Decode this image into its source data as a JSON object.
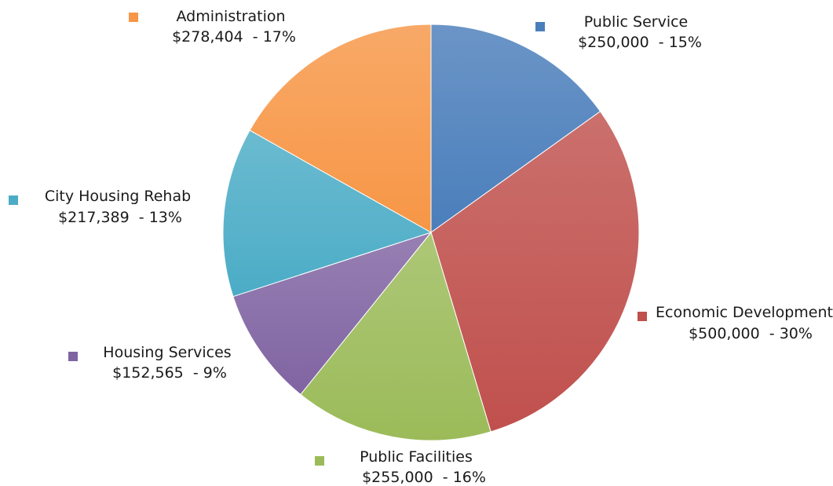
{
  "chart_data": {
    "type": "pie",
    "title": "",
    "slices": [
      {
        "label": "Public Service",
        "value": 250000,
        "value_text": "$250,000",
        "percent_text": "15%",
        "color": "#4a7ebb"
      },
      {
        "label": "Economic Development",
        "value": 500000,
        "value_text": "$500,000",
        "percent_text": "30%",
        "color": "#c0504d"
      },
      {
        "label": "Public Facilities",
        "value": 255000,
        "value_text": "$255,000",
        "percent_text": "16%",
        "color": "#9bbb59"
      },
      {
        "label": "Housing Services",
        "value": 152565,
        "value_text": "$152,565",
        "percent_text": "9%",
        "color": "#8064a2"
      },
      {
        "label": "City Housing Rehab",
        "value": 217389,
        "value_text": "$217,389",
        "percent_text": "13%",
        "color": "#4bacc6"
      },
      {
        "label": "Administration",
        "value": 278404,
        "value_text": "$278,404",
        "percent_text": "17%",
        "color": "#f79646"
      }
    ],
    "start": "12 o'clock",
    "direction": "clockwise"
  }
}
